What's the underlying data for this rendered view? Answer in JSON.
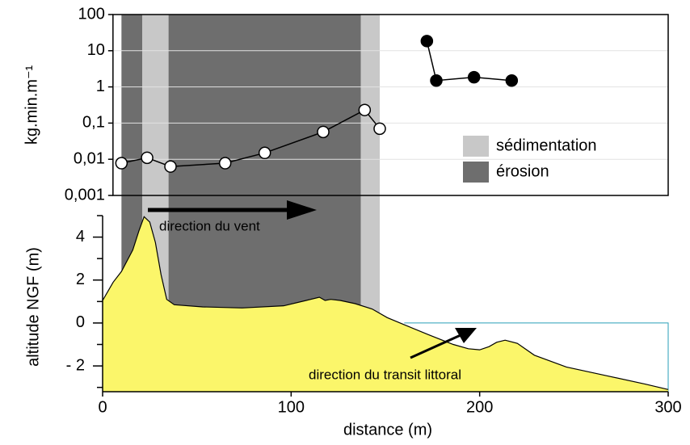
{
  "chart_data": [
    {
      "type": "line",
      "y_label": "kg.min.m⁻¹",
      "log_y": true,
      "grid": true,
      "xlim": [
        5.5,
        300
      ],
      "ylim": [
        0.001,
        100
      ],
      "yticks": [
        100,
        10,
        1,
        {
          "value": 0.1,
          "label": "0,1"
        },
        {
          "value": 0.01,
          "label": "0,01"
        },
        {
          "value": 0.001,
          "label": "0,001"
        }
      ],
      "bands": [
        {
          "name": "sédimentation",
          "color": "#c8c8c8",
          "ranges": [
            [
              21,
              35
            ],
            [
              137,
              147
            ]
          ]
        },
        {
          "name": "érosion",
          "color": "#6e6e6e",
          "ranges": [
            [
              10,
              137
            ]
          ]
        }
      ],
      "series": [
        {
          "marker": "open",
          "color": "#000000",
          "x": [
            10,
            23.6,
            36,
            65,
            86,
            117,
            139,
            147
          ],
          "values": [
            0.0078,
            0.011,
            0.0063,
            0.0078,
            0.015,
            0.057,
            0.23,
            0.07
          ]
        },
        {
          "marker": "filled",
          "color": "#000000",
          "x": [
            172,
            177,
            197,
            217
          ],
          "values": [
            18.5,
            1.5,
            1.85,
            1.5
          ]
        }
      ],
      "annotations": [
        "direction du vent"
      ]
    },
    {
      "type": "area",
      "x_label": "distance (m)",
      "y_label": "altitude NGF (m)",
      "color": "#fbf66a",
      "xlim": [
        0,
        300
      ],
      "ylim": [
        -3.2,
        5
      ],
      "xticks": [
        0,
        100,
        200,
        300
      ],
      "yticks": [
        4,
        2,
        0,
        {
          "value": -2,
          "label": "- 2"
        }
      ],
      "yminorticks": [
        5,
        3,
        1,
        -1,
        -3
      ],
      "x": [
        0,
        5.6,
        10,
        16,
        19.3,
        22,
        25,
        28,
        31,
        34,
        38,
        53,
        74,
        96,
        108,
        115,
        118,
        121,
        126,
        134,
        143,
        151,
        160,
        173,
        186,
        194,
        200,
        205,
        209,
        213.5,
        220,
        229,
        246,
        267,
        288,
        300
      ],
      "values": [
        1.05,
        1.9,
        2.4,
        3.4,
        4.3,
        4.95,
        4.7,
        3.75,
        2.25,
        1.1,
        0.85,
        0.75,
        0.7,
        0.8,
        1.05,
        1.2,
        1.05,
        1.1,
        1.05,
        0.9,
        0.65,
        0.25,
        -0.08,
        -0.55,
        -1.0,
        -1.2,
        -1.25,
        -1.1,
        -0.9,
        -0.8,
        -0.95,
        -1.5,
        -2.05,
        -2.45,
        -2.85,
        -3.1
      ],
      "annotations": [
        "direction du transit littoral"
      ]
    }
  ]
}
